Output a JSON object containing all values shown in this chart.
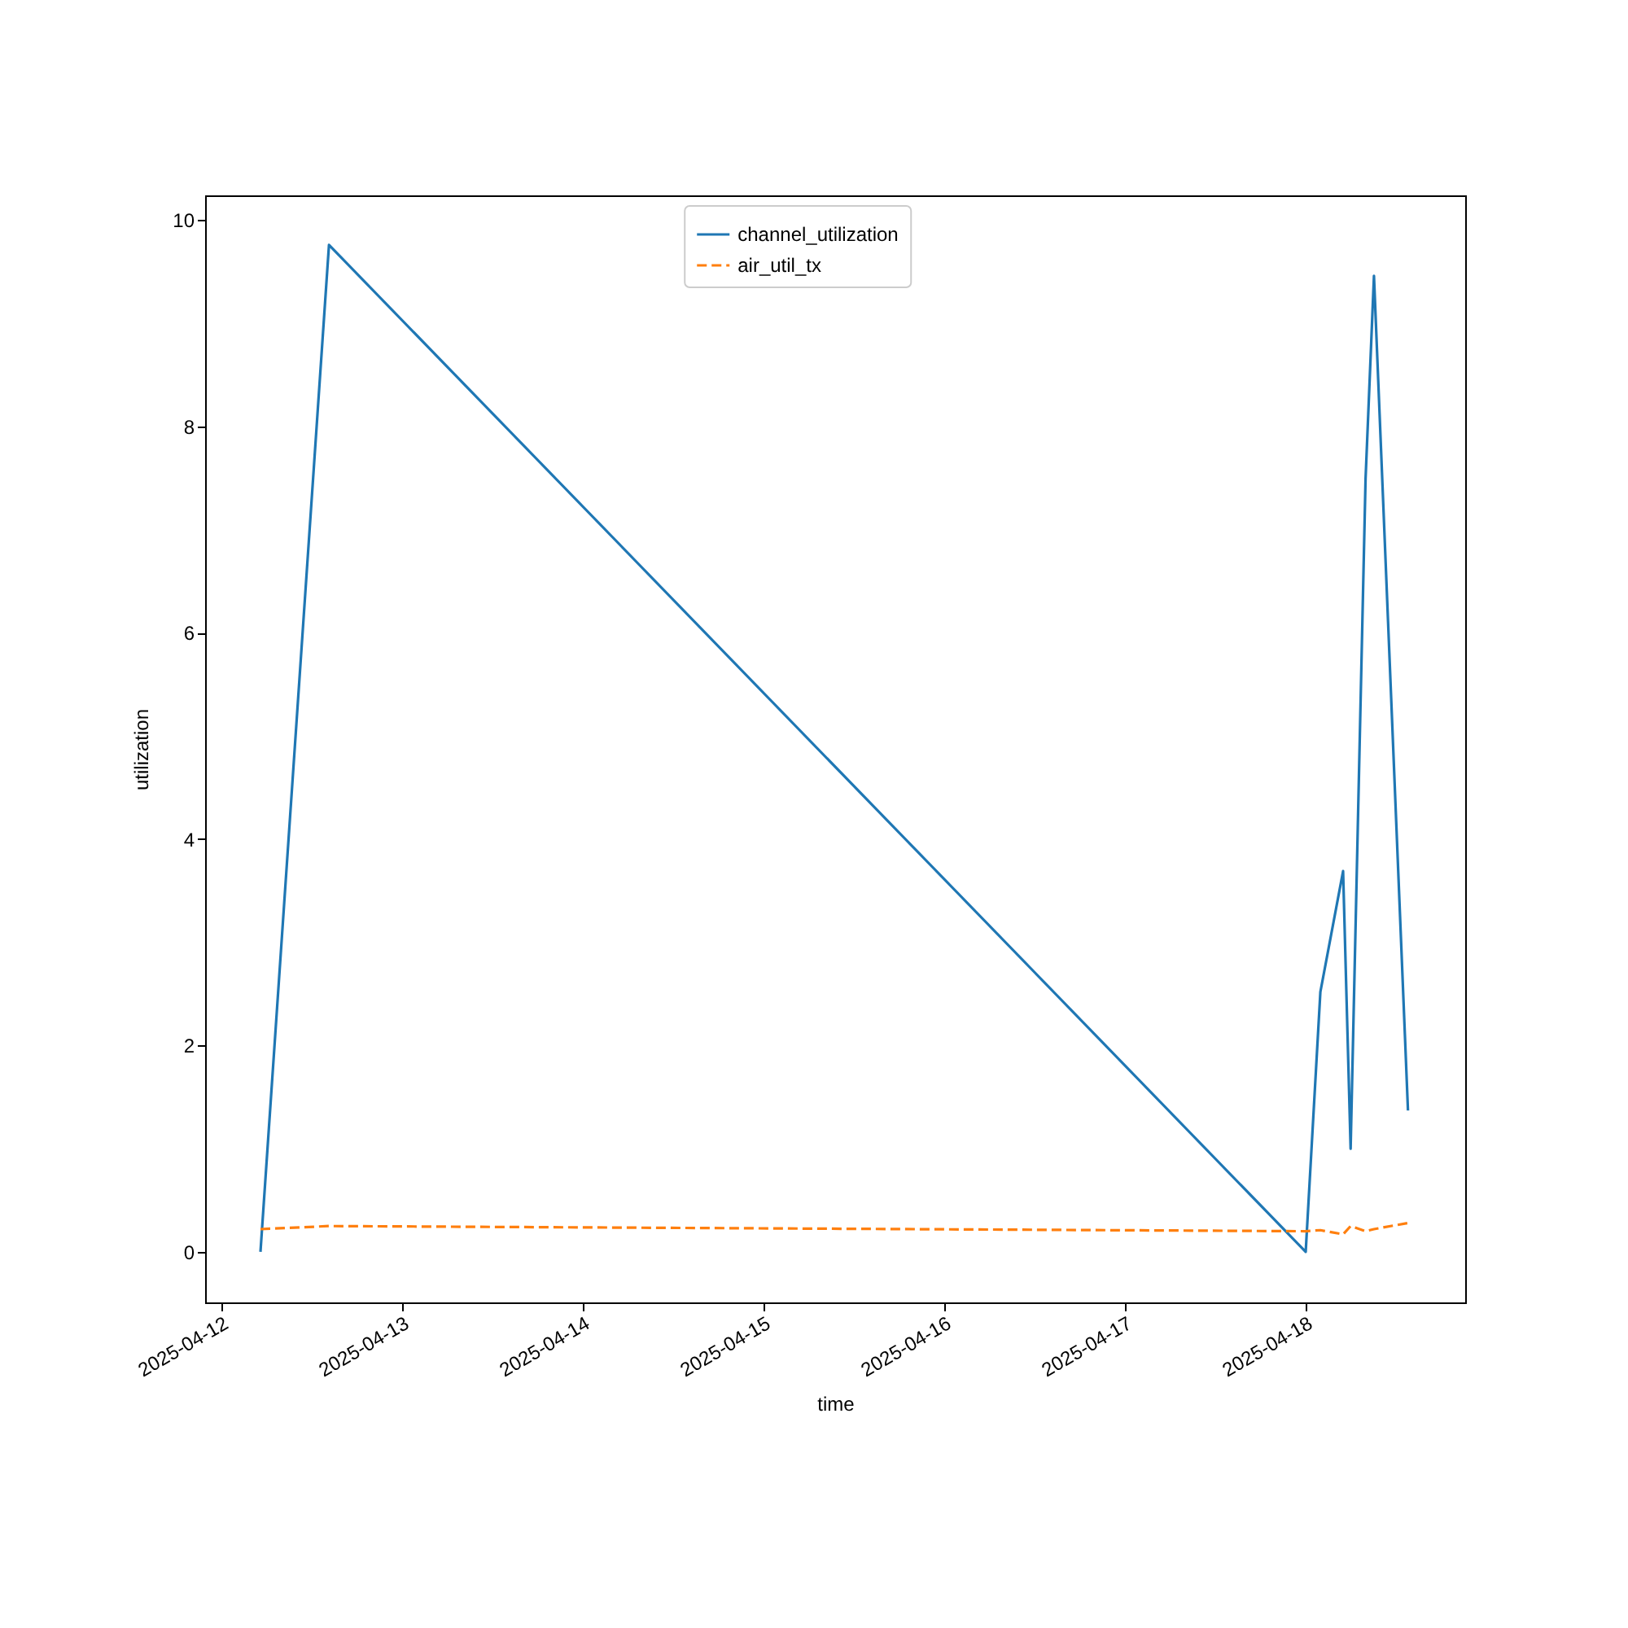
{
  "chart_data": {
    "type": "line",
    "xlabel": "time",
    "ylabel": "utilization",
    "x": [
      "2025-04-12T05:11",
      "2025-04-12T14:17",
      "2025-04-18T00:00",
      "2025-04-18T01:57",
      "2025-04-18T04:58",
      "2025-04-18T05:58",
      "2025-04-18T07:57",
      "2025-04-18T09:04",
      "2025-04-18T13:35"
    ],
    "series": [
      {
        "name": "channel_utilization",
        "color": "#1f77b4",
        "line_style": "solid",
        "values": [
          0,
          9.76,
          0,
          2.52,
          3.69,
          1.0,
          7.49,
          9.46,
          1.37
        ]
      },
      {
        "name": "air_util_tx",
        "color": "#ff7f0e",
        "line_style": "dashed",
        "values": [
          0.22,
          0.25,
          0.2,
          0.21,
          0.17,
          0.25,
          0.2,
          0.22,
          0.28
        ]
      }
    ],
    "xlim": [
      "2025-04-11T21:50",
      "2025-04-18T21:11"
    ],
    "xticks": [
      "2025-04-12",
      "2025-04-13",
      "2025-04-14",
      "2025-04-15",
      "2025-04-16",
      "2025-04-17",
      "2025-04-18"
    ],
    "ylim": [
      -0.49,
      10.24
    ],
    "yticks": [
      0,
      2,
      4,
      6,
      8,
      10
    ],
    "grid": false,
    "legend": "top"
  }
}
